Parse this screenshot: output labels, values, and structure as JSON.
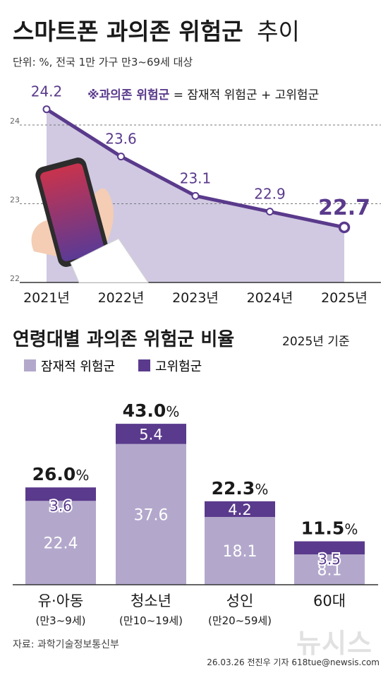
{
  "header": {
    "title_bold": "스마트폰 과의존 위험군",
    "title_light": "추이",
    "unit_note": "단위: %, 전국 1만 가구 만3~69세 대상"
  },
  "chart_data": [
    {
      "type": "area",
      "title": "스마트폰 과의존 위험군 추이",
      "x": [
        "2021년",
        "2022년",
        "2023년",
        "2024년",
        "2025년"
      ],
      "values": [
        24.2,
        23.6,
        23.1,
        22.9,
        22.7
      ],
      "y_ticks": [
        22,
        23,
        24
      ],
      "ylim": [
        22,
        24.5
      ],
      "gridlines": "dashed",
      "note_mark": "※과의존 위험군",
      "note_rest": " = 잠재적 위험군 + 고위험군",
      "colors": {
        "line": "#5a3a8c",
        "area": "#c8c0dc",
        "highlight": "#5a3a8c"
      }
    },
    {
      "type": "bar",
      "stacked": true,
      "title": "연령대별 과의존 위험군 비율",
      "subtitle": "2025년 기준",
      "categories": [
        "유·아동",
        "청소년",
        "성인",
        "60대"
      ],
      "category_sublabels": [
        "(만3~9세)",
        "(만10~19세)",
        "(만20~59세)",
        ""
      ],
      "series": [
        {
          "name": "잠재적 위험군",
          "values": [
            22.4,
            37.6,
            18.1,
            8.1
          ],
          "color": "#b3a8cc"
        },
        {
          "name": "고위험군",
          "values": [
            3.6,
            5.4,
            4.2,
            3.5
          ],
          "color": "#5a3a8c"
        }
      ],
      "totals_num": [
        "26.0",
        "43.0",
        "22.3",
        "11.5"
      ],
      "totals_unit": "%",
      "ylim": [
        0,
        45
      ],
      "legend": "top-left"
    }
  ],
  "footer": {
    "source": "자료: 과학기술정보통신부",
    "credit": "26.03.26 전진우 기자 618tue@newsis.com",
    "watermark": "뉴시스"
  }
}
